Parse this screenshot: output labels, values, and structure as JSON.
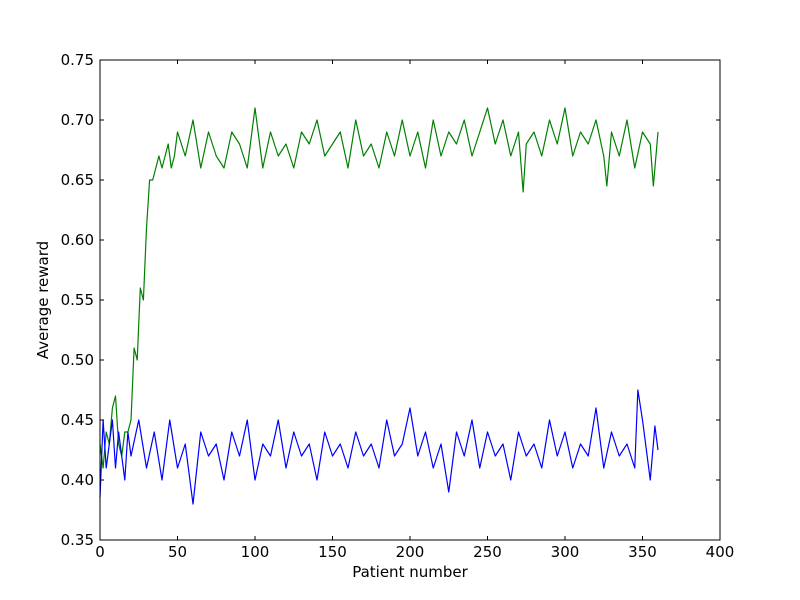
{
  "chart_data": {
    "type": "line",
    "title": "",
    "xlabel": "Patient number",
    "ylabel": "Average reward",
    "xlim": [
      0,
      400
    ],
    "ylim": [
      0.35,
      0.75
    ],
    "xticks": [
      0,
      50,
      100,
      150,
      200,
      250,
      300,
      350,
      400
    ],
    "yticks": [
      0.35,
      0.4,
      0.45,
      0.5,
      0.55,
      0.6,
      0.65,
      0.7,
      0.75
    ],
    "xtick_labels": [
      "0",
      "50",
      "100",
      "150",
      "200",
      "250",
      "300",
      "350",
      "400"
    ],
    "ytick_labels": [
      "0.35",
      "0.40",
      "0.45",
      "0.50",
      "0.55",
      "0.60",
      "0.65",
      "0.70",
      "0.75"
    ],
    "grid": false,
    "legend": "none",
    "series": [
      {
        "color": "#008000",
        "x": [
          0,
          2,
          4,
          6,
          8,
          10,
          12,
          14,
          16,
          18,
          20,
          22,
          24,
          26,
          28,
          30,
          32,
          34,
          36,
          38,
          40,
          42,
          44,
          46,
          48,
          50,
          55,
          60,
          65,
          70,
          75,
          80,
          85,
          90,
          95,
          100,
          105,
          110,
          115,
          120,
          125,
          130,
          135,
          140,
          145,
          150,
          155,
          160,
          165,
          170,
          175,
          180,
          185,
          190,
          195,
          200,
          205,
          210,
          215,
          220,
          225,
          230,
          235,
          240,
          245,
          250,
          255,
          260,
          265,
          270,
          273,
          275,
          280,
          285,
          290,
          295,
          300,
          305,
          310,
          315,
          320,
          325,
          327,
          330,
          335,
          340,
          345,
          350,
          355,
          357,
          360
        ],
        "y": [
          0.43,
          0.41,
          0.44,
          0.43,
          0.46,
          0.47,
          0.43,
          0.42,
          0.44,
          0.44,
          0.45,
          0.51,
          0.5,
          0.56,
          0.55,
          0.61,
          0.65,
          0.65,
          0.66,
          0.67,
          0.66,
          0.67,
          0.68,
          0.66,
          0.67,
          0.69,
          0.67,
          0.7,
          0.66,
          0.69,
          0.67,
          0.66,
          0.69,
          0.68,
          0.66,
          0.71,
          0.66,
          0.69,
          0.67,
          0.68,
          0.66,
          0.69,
          0.68,
          0.7,
          0.67,
          0.68,
          0.69,
          0.66,
          0.7,
          0.67,
          0.68,
          0.66,
          0.69,
          0.67,
          0.7,
          0.67,
          0.69,
          0.66,
          0.7,
          0.67,
          0.69,
          0.68,
          0.7,
          0.67,
          0.69,
          0.71,
          0.68,
          0.7,
          0.67,
          0.69,
          0.64,
          0.68,
          0.69,
          0.67,
          0.7,
          0.68,
          0.71,
          0.67,
          0.69,
          0.68,
          0.7,
          0.67,
          0.645,
          0.69,
          0.67,
          0.7,
          0.66,
          0.69,
          0.68,
          0.645,
          0.69
        ]
      },
      {
        "color": "#0000ff",
        "x": [
          0,
          2,
          4,
          6,
          8,
          10,
          12,
          14,
          16,
          18,
          20,
          25,
          30,
          35,
          40,
          45,
          50,
          55,
          60,
          65,
          70,
          75,
          80,
          85,
          90,
          95,
          100,
          105,
          110,
          115,
          120,
          125,
          130,
          135,
          140,
          145,
          150,
          155,
          160,
          165,
          170,
          175,
          180,
          185,
          190,
          195,
          200,
          205,
          210,
          215,
          220,
          225,
          230,
          235,
          240,
          245,
          250,
          255,
          260,
          265,
          270,
          275,
          280,
          285,
          290,
          295,
          300,
          305,
          310,
          315,
          320,
          325,
          330,
          335,
          340,
          345,
          347,
          350,
          355,
          358,
          360
        ],
        "y": [
          0.385,
          0.45,
          0.41,
          0.43,
          0.45,
          0.41,
          0.44,
          0.42,
          0.4,
          0.44,
          0.42,
          0.45,
          0.41,
          0.44,
          0.4,
          0.45,
          0.41,
          0.43,
          0.38,
          0.44,
          0.42,
          0.43,
          0.4,
          0.44,
          0.42,
          0.45,
          0.4,
          0.43,
          0.42,
          0.45,
          0.41,
          0.44,
          0.42,
          0.43,
          0.4,
          0.44,
          0.42,
          0.43,
          0.41,
          0.44,
          0.42,
          0.43,
          0.41,
          0.45,
          0.42,
          0.43,
          0.46,
          0.42,
          0.44,
          0.41,
          0.43,
          0.39,
          0.44,
          0.42,
          0.45,
          0.41,
          0.44,
          0.42,
          0.43,
          0.4,
          0.44,
          0.42,
          0.43,
          0.41,
          0.45,
          0.42,
          0.44,
          0.41,
          0.43,
          0.42,
          0.46,
          0.41,
          0.44,
          0.42,
          0.43,
          0.41,
          0.475,
          0.45,
          0.4,
          0.445,
          0.425
        ]
      }
    ]
  }
}
